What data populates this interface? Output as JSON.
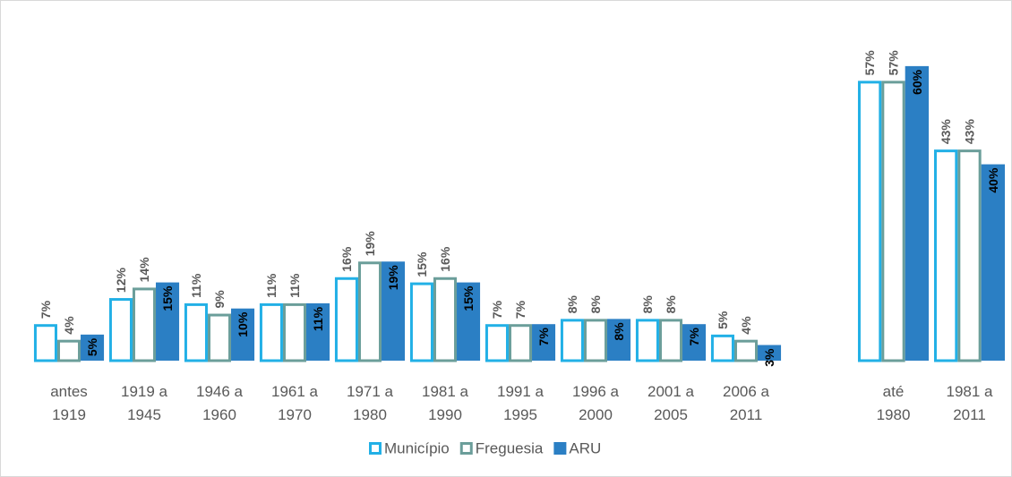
{
  "chart_data": [
    {
      "type": "bar",
      "categories": [
        "antes 1919",
        "1919 a 1945",
        "1946 a 1960",
        "1961 a 1970",
        "1971 a 1980",
        "1981 a 1990",
        "1991 a 1995",
        "1996 a 2000",
        "2001 a 2005",
        "2006 a 2011"
      ],
      "series": [
        {
          "name": "Município",
          "color": "#22b0e6",
          "style": "outline",
          "values": [
            7,
            12,
            11,
            11,
            16,
            15,
            7,
            8,
            8,
            5
          ],
          "value_labels": [
            "7%",
            "12%",
            "11%",
            "11%",
            "16%",
            "15%",
            "7%",
            "8%",
            "8%",
            "5%"
          ]
        },
        {
          "name": "Freguesia",
          "color": "#6b9e9a",
          "style": "outline",
          "values": [
            4,
            14,
            9,
            11,
            19,
            16,
            7,
            8,
            8,
            4
          ],
          "value_labels": [
            "4%",
            "14%",
            "9%",
            "11%",
            "19%",
            "16%",
            "7%",
            "8%",
            "8%",
            "4%"
          ]
        },
        {
          "name": "ARU",
          "color": "#2b7fc4",
          "style": "solid",
          "values": [
            5,
            15,
            10,
            11,
            19,
            15,
            7,
            8,
            7,
            3
          ],
          "value_labels": [
            "5%",
            "15%",
            "10%",
            "11%",
            "19%",
            "15%",
            "7%",
            "8%",
            "7%",
            "3%"
          ]
        }
      ],
      "ylim": [
        0,
        64
      ],
      "legend": "bottom"
    },
    {
      "type": "bar",
      "categories": [
        "até 1980",
        "1981 a 2011"
      ],
      "series": [
        {
          "name": "Município",
          "color": "#22b0e6",
          "style": "outline",
          "values": [
            57,
            43
          ],
          "value_labels": [
            "57%",
            "43%"
          ]
        },
        {
          "name": "Freguesia",
          "color": "#6b9e9a",
          "style": "outline",
          "values": [
            57,
            43
          ],
          "value_labels": [
            "57%",
            "43%"
          ]
        },
        {
          "name": "ARU",
          "color": "#2b7fc4",
          "style": "solid",
          "values": [
            60,
            40
          ],
          "value_labels": [
            "60%",
            "40%"
          ]
        }
      ],
      "ylim": [
        0,
        68
      ]
    }
  ]
}
